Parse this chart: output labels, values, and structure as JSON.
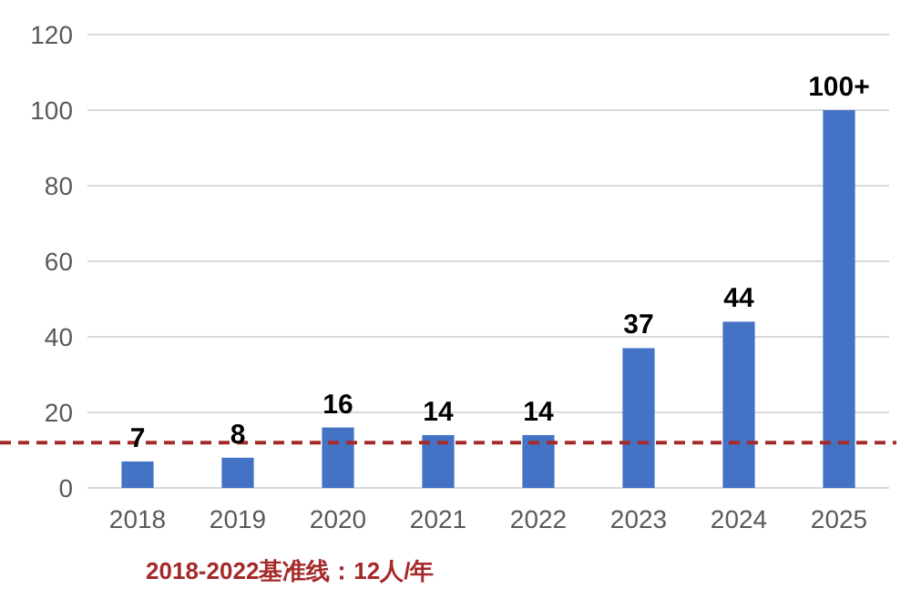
{
  "chart_data": {
    "type": "bar",
    "categories": [
      "2018",
      "2019",
      "2020",
      "2021",
      "2022",
      "2023",
      "2024",
      "2025"
    ],
    "values": [
      7,
      8,
      16,
      14,
      14,
      37,
      44,
      100
    ],
    "value_labels": [
      "7",
      "8",
      "16",
      "14",
      "14",
      "37",
      "44",
      "100+"
    ],
    "color": "#4472c4",
    "ylim": [
      0,
      120
    ],
    "yticks": [
      0,
      20,
      40,
      60,
      80,
      100,
      120
    ],
    "grid": "y",
    "ref_lines": [
      {
        "axis": "y",
        "value": 12,
        "color": "#a52a2a",
        "line_style": "dashed"
      }
    ],
    "annotations": [
      "2018-2022基准线：12人/年"
    ]
  }
}
